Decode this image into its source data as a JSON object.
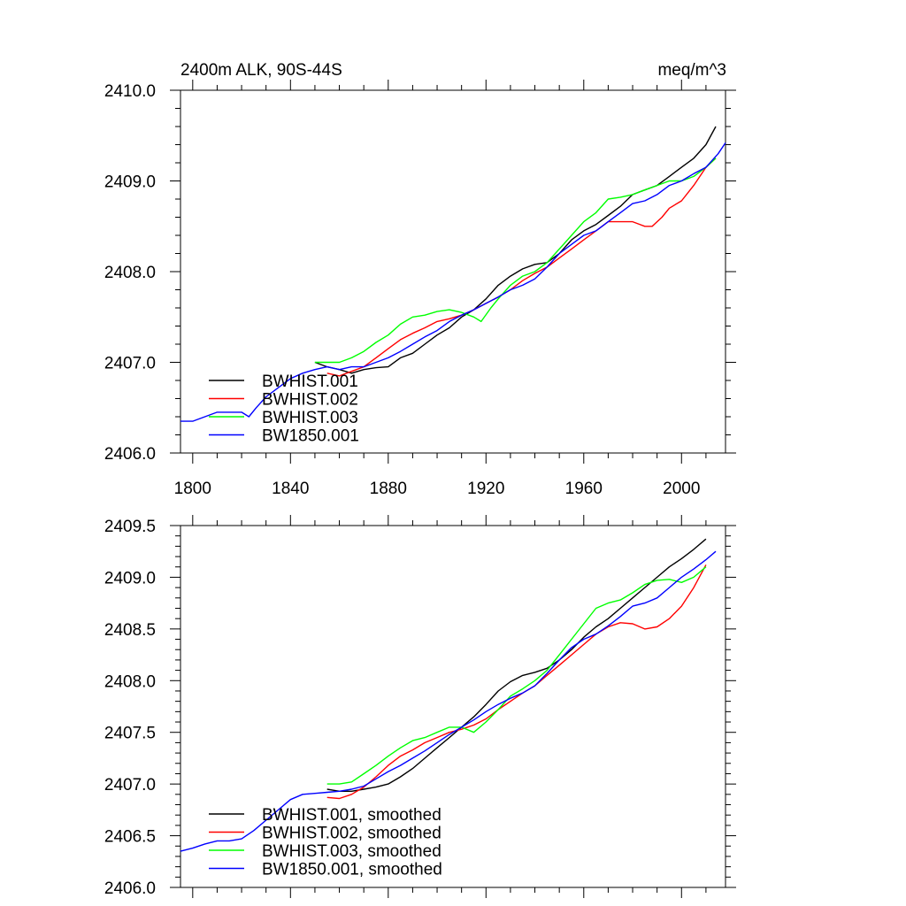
{
  "chart_data": [
    {
      "type": "line",
      "title_left": "2400m ALK, 90S-44S",
      "title_right": "meq/m^3",
      "xlim": [
        1795,
        2018
      ],
      "ylim": [
        2406.0,
        2410.0
      ],
      "x_ticks": [
        1800,
        1840,
        1880,
        1920,
        1960,
        2000
      ],
      "x_tick_labels": [
        "1800",
        "1840",
        "1880",
        "1920",
        "1960",
        "2000"
      ],
      "y_ticks": [
        2406.0,
        2407.0,
        2408.0,
        2409.0,
        2410.0
      ],
      "y_tick_labels": [
        "2406.0",
        "2407.0",
        "2408.0",
        "2409.0",
        "2410.0"
      ],
      "y_minor_step": 0.2,
      "x_minor_step": 10,
      "legend_position": "bottom-left",
      "series": [
        {
          "name": "BWHIST.001",
          "color": "#000000",
          "x": [
            1850,
            1855,
            1860,
            1865,
            1870,
            1875,
            1880,
            1885,
            1890,
            1895,
            1900,
            1905,
            1910,
            1915,
            1920,
            1925,
            1930,
            1935,
            1940,
            1945,
            1950,
            1955,
            1960,
            1965,
            1970,
            1975,
            1980,
            1985,
            1990,
            1995,
            2000,
            2005,
            2010,
            2014
          ],
          "y": [
            2407.0,
            2406.95,
            2406.92,
            2406.88,
            2406.92,
            2406.94,
            2406.95,
            2407.05,
            2407.1,
            2407.2,
            2407.3,
            2407.38,
            2407.5,
            2407.58,
            2407.7,
            2407.85,
            2407.95,
            2408.03,
            2408.08,
            2408.1,
            2408.2,
            2408.35,
            2408.45,
            2408.52,
            2408.62,
            2408.72,
            2408.85,
            2408.9,
            2408.95,
            2409.05,
            2409.15,
            2409.25,
            2409.4,
            2409.6
          ]
        },
        {
          "name": "BWHIST.002",
          "color": "#ff0000",
          "x": [
            1855,
            1860,
            1865,
            1870,
            1875,
            1880,
            1885,
            1890,
            1895,
            1900,
            1905,
            1910,
            1915,
            1920,
            1925,
            1930,
            1935,
            1940,
            1945,
            1950,
            1955,
            1960,
            1965,
            1970,
            1975,
            1980,
            1985,
            1988,
            1992,
            1995,
            2000,
            2005,
            2010,
            2014
          ],
          "y": [
            2406.88,
            2406.85,
            2406.9,
            2406.95,
            2407.05,
            2407.15,
            2407.25,
            2407.32,
            2407.38,
            2407.45,
            2407.48,
            2407.52,
            2407.58,
            2407.65,
            2407.72,
            2407.8,
            2407.9,
            2407.98,
            2408.05,
            2408.15,
            2408.25,
            2408.35,
            2408.45,
            2408.55,
            2408.55,
            2408.55,
            2408.5,
            2408.5,
            2408.6,
            2408.7,
            2408.78,
            2408.95,
            2409.15,
            2409.25
          ]
        },
        {
          "name": "BWHIST.003",
          "color": "#00ff00",
          "x": [
            1850,
            1855,
            1860,
            1865,
            1870,
            1875,
            1880,
            1885,
            1890,
            1895,
            1900,
            1905,
            1910,
            1915,
            1918,
            1922,
            1925,
            1930,
            1935,
            1940,
            1945,
            1950,
            1955,
            1960,
            1965,
            1970,
            1975,
            1980,
            1985,
            1990,
            1995,
            2000,
            2005,
            2010,
            2014
          ],
          "y": [
            2407.0,
            2407.0,
            2407.0,
            2407.05,
            2407.12,
            2407.22,
            2407.3,
            2407.42,
            2407.5,
            2407.52,
            2407.56,
            2407.58,
            2407.55,
            2407.5,
            2407.45,
            2407.6,
            2407.7,
            2407.85,
            2407.95,
            2408.0,
            2408.1,
            2408.25,
            2408.4,
            2408.55,
            2408.65,
            2408.8,
            2408.82,
            2408.85,
            2408.9,
            2408.95,
            2409.0,
            2409.0,
            2409.05,
            2409.15,
            2409.25
          ]
        },
        {
          "name": "BW1850.001",
          "color": "#0000ff",
          "x": [
            1795,
            1800,
            1805,
            1810,
            1815,
            1820,
            1823,
            1826,
            1830,
            1835,
            1840,
            1845,
            1850,
            1855,
            1860,
            1865,
            1870,
            1875,
            1880,
            1885,
            1890,
            1895,
            1900,
            1905,
            1910,
            1915,
            1920,
            1925,
            1930,
            1935,
            1940,
            1945,
            1950,
            1955,
            1960,
            1965,
            1970,
            1975,
            1980,
            1985,
            1990,
            1995,
            2000,
            2005,
            2010,
            2015,
            2018
          ],
          "y": [
            2406.35,
            2406.35,
            2406.4,
            2406.45,
            2406.45,
            2406.45,
            2406.4,
            2406.5,
            2406.62,
            2406.72,
            2406.82,
            2406.88,
            2406.92,
            2406.95,
            2406.92,
            2406.95,
            2406.95,
            2407.0,
            2407.05,
            2407.12,
            2407.2,
            2407.28,
            2407.35,
            2407.45,
            2407.52,
            2407.58,
            2407.65,
            2407.72,
            2407.8,
            2407.85,
            2407.92,
            2408.05,
            2408.2,
            2408.3,
            2408.4,
            2408.45,
            2408.55,
            2408.65,
            2408.75,
            2408.78,
            2408.85,
            2408.95,
            2409.0,
            2409.08,
            2409.15,
            2409.3,
            2409.42
          ]
        }
      ]
    },
    {
      "type": "line",
      "xlim": [
        1795,
        2018
      ],
      "ylim": [
        2406.0,
        2409.5
      ],
      "x_ticks": [
        1800,
        1840,
        1880,
        1920,
        1960,
        2000
      ],
      "y_ticks": [
        2406.0,
        2406.5,
        2407.0,
        2407.5,
        2408.0,
        2408.5,
        2409.0,
        2409.5
      ],
      "y_tick_labels": [
        "2406.0",
        "2406.5",
        "2407.0",
        "2407.5",
        "2408.0",
        "2408.5",
        "2409.0",
        "2409.5"
      ],
      "y_minor_step": 0.1,
      "x_minor_step": 10,
      "legend_position": "bottom-left",
      "series": [
        {
          "name": "BWHIST.001, smoothed",
          "color": "#000000",
          "x": [
            1855,
            1860,
            1865,
            1870,
            1875,
            1880,
            1885,
            1890,
            1895,
            1900,
            1905,
            1910,
            1915,
            1920,
            1925,
            1930,
            1935,
            1940,
            1945,
            1950,
            1955,
            1960,
            1965,
            1970,
            1975,
            1980,
            1985,
            1990,
            1995,
            2000,
            2005,
            2010
          ],
          "y": [
            2406.95,
            2406.93,
            2406.93,
            2406.95,
            2406.97,
            2407.0,
            2407.07,
            2407.15,
            2407.25,
            2407.35,
            2407.45,
            2407.55,
            2407.65,
            2407.77,
            2407.9,
            2407.99,
            2408.05,
            2408.08,
            2408.12,
            2408.2,
            2408.3,
            2408.42,
            2408.52,
            2408.6,
            2408.7,
            2408.8,
            2408.9,
            2409.0,
            2409.1,
            2409.18,
            2409.27,
            2409.37
          ]
        },
        {
          "name": "BWHIST.002, smoothed",
          "color": "#ff0000",
          "x": [
            1855,
            1860,
            1865,
            1870,
            1875,
            1880,
            1885,
            1890,
            1895,
            1900,
            1905,
            1910,
            1915,
            1920,
            1925,
            1930,
            1935,
            1940,
            1945,
            1950,
            1955,
            1960,
            1965,
            1970,
            1975,
            1980,
            1985,
            1990,
            1995,
            2000,
            2005,
            2010
          ],
          "y": [
            2406.87,
            2406.86,
            2406.9,
            2406.97,
            2407.07,
            2407.18,
            2407.27,
            2407.33,
            2407.4,
            2407.45,
            2407.5,
            2407.53,
            2407.57,
            2407.63,
            2407.72,
            2407.8,
            2407.88,
            2407.95,
            2408.05,
            2408.15,
            2408.25,
            2408.35,
            2408.45,
            2408.52,
            2408.56,
            2408.55,
            2408.5,
            2408.52,
            2408.6,
            2408.72,
            2408.9,
            2409.12
          ]
        },
        {
          "name": "BWHIST.003, smoothed",
          "color": "#00ff00",
          "x": [
            1855,
            1860,
            1865,
            1870,
            1875,
            1880,
            1885,
            1890,
            1895,
            1900,
            1905,
            1910,
            1915,
            1920,
            1925,
            1930,
            1935,
            1940,
            1945,
            1950,
            1955,
            1960,
            1965,
            1970,
            1975,
            1980,
            1985,
            1990,
            1995,
            2000,
            2005,
            2010
          ],
          "y": [
            2407.0,
            2407.0,
            2407.02,
            2407.1,
            2407.18,
            2407.27,
            2407.35,
            2407.42,
            2407.45,
            2407.5,
            2407.55,
            2407.55,
            2407.5,
            2407.6,
            2407.72,
            2407.85,
            2407.92,
            2408.0,
            2408.1,
            2408.25,
            2408.4,
            2408.55,
            2408.7,
            2408.75,
            2408.78,
            2408.85,
            2408.93,
            2408.97,
            2408.98,
            2408.95,
            2409.0,
            2409.1
          ]
        },
        {
          "name": "BW1850.001, smoothed",
          "color": "#0000ff",
          "x": [
            1795,
            1800,
            1805,
            1810,
            1815,
            1820,
            1825,
            1830,
            1835,
            1840,
            1845,
            1850,
            1855,
            1860,
            1865,
            1870,
            1875,
            1880,
            1885,
            1890,
            1895,
            1900,
            1905,
            1910,
            1915,
            1920,
            1925,
            1930,
            1935,
            1940,
            1945,
            1950,
            1955,
            1960,
            1965,
            1970,
            1975,
            1980,
            1985,
            1990,
            1995,
            2000,
            2005,
            2010,
            2014
          ],
          "y": [
            2406.35,
            2406.38,
            2406.42,
            2406.45,
            2406.45,
            2406.47,
            2406.55,
            2406.65,
            2406.75,
            2406.85,
            2406.9,
            2406.91,
            2406.92,
            2406.93,
            2406.95,
            2406.98,
            2407.05,
            2407.12,
            2407.18,
            2407.25,
            2407.32,
            2407.4,
            2407.48,
            2407.55,
            2407.62,
            2407.7,
            2407.77,
            2407.83,
            2407.88,
            2407.95,
            2408.07,
            2408.2,
            2408.32,
            2408.4,
            2408.45,
            2408.53,
            2408.62,
            2408.72,
            2408.75,
            2408.8,
            2408.9,
            2409.0,
            2409.08,
            2409.17,
            2409.25
          ]
        }
      ]
    }
  ]
}
